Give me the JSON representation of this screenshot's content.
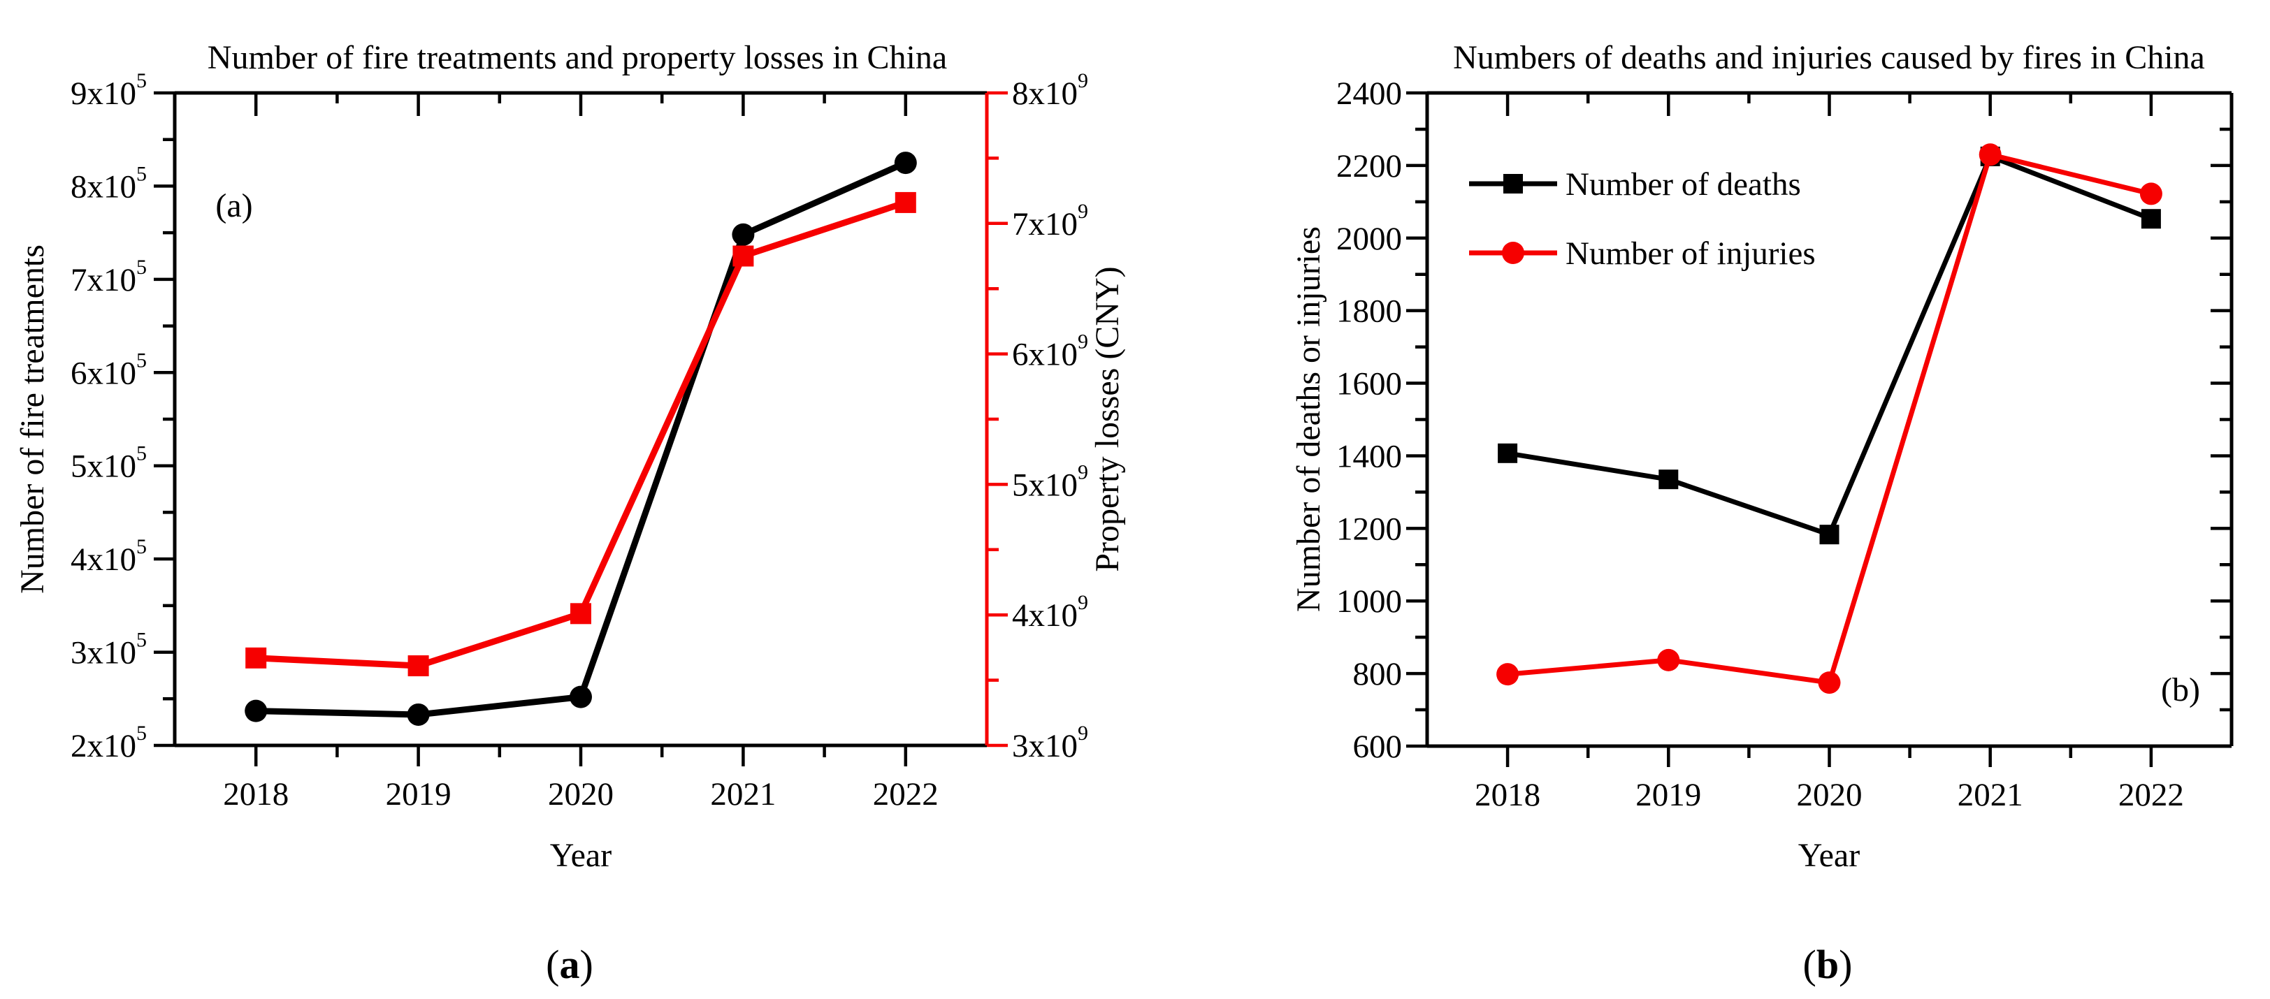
{
  "page": {
    "background": "#ffffff"
  },
  "colors": {
    "black": "#000000",
    "red": "#f60000"
  },
  "chart_data": [
    {
      "id": "a",
      "type": "line",
      "title": "Number of fire treatments and property losses in China",
      "xlabel": "Year",
      "panel_label": "(a)",
      "caption_parts": {
        "open": "(",
        "letter": "a",
        "close": ")"
      },
      "x": [
        2018,
        2019,
        2020,
        2021,
        2022
      ],
      "x_minor": [
        2018.5,
        2019.5,
        2020.5,
        2021.5
      ],
      "xlim": [
        2017.5,
        2022.5
      ],
      "grid": false,
      "left_axis": {
        "label": "Number of fire treatments",
        "color": "black",
        "lim": [
          200000,
          900000
        ],
        "ticks": [
          {
            "v": 200000,
            "m": "2x10",
            "s": "5"
          },
          {
            "v": 300000,
            "m": "3x10",
            "s": "5"
          },
          {
            "v": 400000,
            "m": "4x10",
            "s": "5"
          },
          {
            "v": 500000,
            "m": "5x10",
            "s": "5"
          },
          {
            "v": 600000,
            "m": "6x10",
            "s": "5"
          },
          {
            "v": 700000,
            "m": "7x10",
            "s": "5"
          },
          {
            "v": 800000,
            "m": "8x10",
            "s": "5"
          },
          {
            "v": 900000,
            "m": "9x10",
            "s": "5"
          }
        ],
        "minor": [
          250000,
          350000,
          450000,
          550000,
          650000,
          750000,
          850000
        ]
      },
      "right_axis": {
        "label": "Property losses (CNY)",
        "label_color": "black",
        "color": "red",
        "lim": [
          3000000000,
          8000000000
        ],
        "ticks": [
          {
            "v": 3000000000,
            "m": "3x10",
            "s": "9"
          },
          {
            "v": 4000000000,
            "m": "4x10",
            "s": "9"
          },
          {
            "v": 5000000000,
            "m": "5x10",
            "s": "9"
          },
          {
            "v": 6000000000,
            "m": "6x10",
            "s": "9"
          },
          {
            "v": 7000000000,
            "m": "7x10",
            "s": "9"
          },
          {
            "v": 8000000000,
            "m": "8x10",
            "s": "9"
          }
        ],
        "minor": [
          3500000000,
          4500000000,
          5500000000,
          6500000000,
          7500000000
        ]
      },
      "series": [
        {
          "name": "Number of fire treatments",
          "axis": "left",
          "color": "black",
          "marker": "circle",
          "values": [
            237000,
            233000,
            252000,
            748000,
            825000
          ]
        },
        {
          "name": "Property losses (CNY)",
          "axis": "right",
          "color": "red",
          "marker": "square",
          "values": [
            3670000000,
            3610000000,
            4010000000,
            6750000000,
            7160000000
          ]
        }
      ]
    },
    {
      "id": "b",
      "type": "line",
      "title": "Numbers of deaths and injuries caused by fires in China",
      "xlabel": "Year",
      "panel_label": "(b)",
      "caption_parts": {
        "open": "(",
        "letter": "b",
        "close": ")"
      },
      "x": [
        2018,
        2019,
        2020,
        2021,
        2022
      ],
      "x_minor": [
        2018.5,
        2019.5,
        2020.5,
        2021.5
      ],
      "xlim": [
        2017.5,
        2022.5
      ],
      "grid": false,
      "legend_position": "top-left",
      "left_axis": {
        "label": "Number of deaths or injuries",
        "color": "black",
        "lim": [
          600,
          2400
        ],
        "ticks": [
          {
            "v": 600,
            "m": "600"
          },
          {
            "v": 800,
            "m": "800"
          },
          {
            "v": 1000,
            "m": "1000"
          },
          {
            "v": 1200,
            "m": "1200"
          },
          {
            "v": 1400,
            "m": "1400"
          },
          {
            "v": 1600,
            "m": "1600"
          },
          {
            "v": 1800,
            "m": "1800"
          },
          {
            "v": 2000,
            "m": "2000"
          },
          {
            "v": 2200,
            "m": "2200"
          },
          {
            "v": 2400,
            "m": "2400"
          }
        ],
        "minor": [
          700,
          900,
          1100,
          1300,
          1500,
          1700,
          1900,
          2100,
          2300
        ]
      },
      "right_axis": {
        "mirror": true
      },
      "legend": [
        {
          "label": "Number of deaths",
          "color": "black",
          "marker": "square"
        },
        {
          "label": "Number of injuries",
          "color": "red",
          "marker": "circle"
        }
      ],
      "series": [
        {
          "name": "Number of deaths",
          "axis": "left",
          "color": "black",
          "marker": "square",
          "values": [
            1407,
            1335,
            1183,
            2225,
            2053
          ]
        },
        {
          "name": "Number of injuries",
          "axis": "left",
          "color": "red",
          "marker": "circle",
          "values": [
            798,
            837,
            775,
            2230,
            2122
          ]
        }
      ]
    }
  ]
}
